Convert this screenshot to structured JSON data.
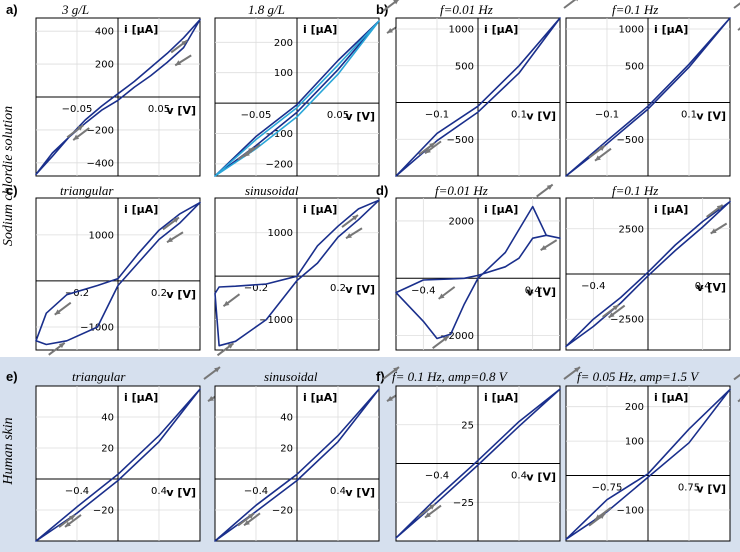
{
  "colors": {
    "curve": "#1a2f8c",
    "curve_alt": "#2aa6d8",
    "arrow": "#777777",
    "band": "#d6e0ee"
  },
  "row_labels": {
    "sodium": "Sodium chlordie solution",
    "skin": "Human skin"
  },
  "panel_labels": {
    "a": "a)",
    "b": "b)",
    "c": "c)",
    "d": "d)",
    "e": "e)",
    "f": "f)"
  },
  "titles": {
    "a1": "3 g/L",
    "a2": "1.8 g/L",
    "b1": "f=0.01 Hz",
    "b2": "f=0.1 Hz",
    "c1": "triangular",
    "c2": "sinusoidal",
    "d1": "f=0.01 Hz",
    "d2": "f=0.1 Hz",
    "e1": "triangular",
    "e2": "sinusoidal",
    "f1": "f= 0.1 Hz, amp=0.8 V",
    "f2": "f= 0.05 Hz, amp=1.5 V"
  },
  "chart_data": [
    {
      "id": "a1",
      "type": "line",
      "title": "3 g/L",
      "xlabel": "v [V]",
      "ylabel": "i [μA]",
      "xlim": [
        -0.1,
        0.1
      ],
      "ylim": [
        -480,
        480
      ],
      "xticks": [
        -0.05,
        0.05
      ],
      "yticks": [
        -400,
        -200,
        200,
        400
      ],
      "series": [
        {
          "x": [
            -0.1,
            -0.08,
            -0.06,
            -0.04,
            -0.02,
            0,
            0.02,
            0.04,
            0.06,
            0.08,
            0.1
          ],
          "forward": [
            -470,
            -360,
            -245,
            -160,
            -80,
            -20,
            60,
            130,
            210,
            300,
            470
          ],
          "backward": [
            -470,
            -340,
            -245,
            -140,
            -55,
            20,
            95,
            180,
            265,
            360,
            470
          ]
        }
      ]
    },
    {
      "id": "a2",
      "type": "line",
      "title": "1.8 g/L",
      "xlabel": "v [V]",
      "ylabel": "i [μA]",
      "xlim": [
        -0.1,
        0.1
      ],
      "ylim": [
        -240,
        280
      ],
      "xticks": [
        -0.05,
        0.05
      ],
      "yticks": [
        -200,
        -100,
        100,
        200
      ],
      "series": [
        {
          "color": "#1a2f8c",
          "x": [
            -0.1,
            -0.05,
            0,
            0.05,
            0.1
          ],
          "forward": [
            -240,
            -140,
            -30,
            110,
            270
          ],
          "backward": [
            -240,
            -110,
            -5,
            140,
            270
          ]
        },
        {
          "color": "#2aa6d8",
          "x": [
            -0.1,
            -0.05,
            0,
            0.05,
            0.1
          ],
          "forward": [
            -240,
            -150,
            -45,
            95,
            270
          ],
          "backward": [
            -240,
            -120,
            -15,
            125,
            270
          ]
        }
      ]
    },
    {
      "id": "b1",
      "type": "line",
      "title": "f=0.01 Hz",
      "xlabel": "v [V]",
      "ylabel": "i [μA]",
      "xlim": [
        -0.2,
        0.2
      ],
      "ylim": [
        -1000,
        1150
      ],
      "xticks": [
        -0.1,
        0.1
      ],
      "yticks": [
        -500,
        500,
        1000
      ],
      "series": [
        {
          "x": [
            -0.2,
            -0.1,
            0,
            0.1,
            0.2
          ],
          "forward": [
            -1000,
            -520,
            -130,
            400,
            1150
          ],
          "backward": [
            -1000,
            -420,
            -50,
            500,
            1150
          ]
        }
      ]
    },
    {
      "id": "b2",
      "type": "line",
      "title": "f=0.1 Hz",
      "xlabel": "v [V]",
      "ylabel": "i [μA]",
      "xlim": [
        -0.2,
        0.2
      ],
      "ylim": [
        -1000,
        1150
      ],
      "xticks": [
        -0.1,
        0.1
      ],
      "yticks": [
        -500,
        500,
        1000
      ],
      "series": [
        {
          "x": [
            -0.2,
            -0.1,
            0,
            0.1,
            0.2
          ],
          "forward": [
            -1000,
            -560,
            -90,
            480,
            1150
          ],
          "backward": [
            -1000,
            -520,
            -50,
            520,
            1150
          ]
        }
      ]
    },
    {
      "id": "c1",
      "type": "line",
      "title": "triangular",
      "xlabel": "v [V]",
      "ylabel": "i [μA]",
      "xlim": [
        -0.4,
        0.4
      ],
      "ylim": [
        -1500,
        1800
      ],
      "xticks": [
        -0.2,
        0.2
      ],
      "yticks": [
        -1000,
        1000
      ],
      "series": [
        {
          "x": [
            -0.4,
            -0.35,
            -0.25,
            -0.1,
            0,
            0.1,
            0.2,
            0.3,
            0.4
          ],
          "forward": [
            -1300,
            -1380,
            -1300,
            -1000,
            -100,
            400,
            900,
            1250,
            1700
          ],
          "backward": [
            -1300,
            -700,
            -300,
            -100,
            50,
            600,
            1100,
            1450,
            1700
          ]
        }
      ]
    },
    {
      "id": "c2",
      "type": "line",
      "title": "sinusoidal",
      "xlabel": "v [V]",
      "ylabel": "i [μA]",
      "xlim": [
        -0.4,
        0.4
      ],
      "ylim": [
        -1700,
        1800
      ],
      "xticks": [
        -0.2,
        0.2
      ],
      "yticks": [
        -1000,
        1000
      ],
      "series": [
        {
          "x": [
            -0.4,
            -0.38,
            -0.3,
            -0.15,
            0,
            0.1,
            0.2,
            0.3,
            0.4
          ],
          "forward": [
            -400,
            -1600,
            -1500,
            -1000,
            -100,
            300,
            900,
            1300,
            1750
          ],
          "backward": [
            -400,
            -250,
            -230,
            -180,
            0,
            700,
            1150,
            1550,
            1750
          ]
        }
      ]
    },
    {
      "id": "d1",
      "type": "line",
      "title": "f=0.01 Hz",
      "xlabel": "v [V]",
      "ylabel": "i [μA]",
      "xlim": [
        -0.6,
        0.6
      ],
      "ylim": [
        -2500,
        2800
      ],
      "xticks": [
        -0.4,
        0.4
      ],
      "yticks": [
        -2000,
        2000
      ],
      "series": [
        {
          "x": [
            -0.6,
            -0.4,
            -0.3,
            -0.2,
            -0.1,
            0,
            0.2,
            0.3,
            0.4,
            0.5,
            0.6
          ],
          "forward": [
            -500,
            -1500,
            -2100,
            -1950,
            -900,
            0,
            900,
            1700,
            2500,
            1500,
            1400
          ],
          "backward": [
            -500,
            -60,
            -40,
            -20,
            0,
            100,
            400,
            700,
            1400,
            1500,
            1400
          ]
        }
      ]
    },
    {
      "id": "d2",
      "type": "line",
      "title": "f=0.1 Hz",
      "xlabel": "v [V]",
      "ylabel": "i [μA]",
      "xlim": [
        -0.6,
        0.6
      ],
      "ylim": [
        -4200,
        4200
      ],
      "xticks": [
        -0.4,
        0.4
      ],
      "yticks": [
        -2500,
        2500
      ],
      "series": [
        {
          "x": [
            -0.6,
            -0.4,
            -0.2,
            0,
            0.2,
            0.4,
            0.6
          ],
          "forward": [
            -4000,
            -2900,
            -1600,
            -100,
            1300,
            2600,
            4000
          ],
          "backward": [
            -4000,
            -2500,
            -1300,
            100,
            1600,
            2900,
            4000
          ]
        }
      ]
    },
    {
      "id": "e1",
      "type": "line",
      "title": "triangular",
      "xlabel": "v [V]",
      "ylabel": "i [μA]",
      "xlim": [
        -0.8,
        0.8
      ],
      "ylim": [
        -40,
        60
      ],
      "xticks": [
        -0.4,
        0.4
      ],
      "yticks": [
        -20,
        20,
        40
      ],
      "series": [
        {
          "x": [
            -0.8,
            -0.4,
            0,
            0.4,
            0.8
          ],
          "forward": [
            -40,
            -22,
            -1,
            24,
            58
          ],
          "backward": [
            -40,
            -18,
            3,
            28,
            58
          ]
        }
      ]
    },
    {
      "id": "e2",
      "type": "line",
      "title": "sinusoidal",
      "xlabel": "v [V]",
      "ylabel": "i [μA]",
      "xlim": [
        -0.8,
        0.8
      ],
      "ylim": [
        -40,
        60
      ],
      "xticks": [
        -0.4,
        0.4
      ],
      "yticks": [
        -20,
        20,
        40
      ],
      "series": [
        {
          "x": [
            -0.8,
            -0.4,
            0,
            0.4,
            0.8
          ],
          "forward": [
            -40,
            -21,
            -1,
            24,
            58
          ],
          "backward": [
            -40,
            -17,
            3,
            28,
            58
          ]
        }
      ]
    },
    {
      "id": "f1",
      "type": "line",
      "title": "f= 0.1 Hz, amp=0.8 V",
      "xlabel": "v [V]",
      "ylabel": "i [μA]",
      "xlim": [
        -0.8,
        0.8
      ],
      "ylim": [
        -50,
        50
      ],
      "xticks": [
        -0.4,
        0.4
      ],
      "yticks": [
        -25,
        25
      ],
      "series": [
        {
          "x": [
            -0.8,
            -0.4,
            0,
            0.4,
            0.8
          ],
          "forward": [
            -48,
            -25,
            -1,
            24,
            48
          ],
          "backward": [
            -48,
            -22,
            2,
            27,
            48
          ]
        }
      ]
    },
    {
      "id": "f2",
      "type": "line",
      "title": "f= 0.05 Hz, amp=1.5 V",
      "xlabel": "v [V]",
      "ylabel": "i [μA]",
      "xlim": [
        -1.5,
        1.5
      ],
      "ylim": [
        -190,
        260
      ],
      "xticks": [
        -0.75,
        0.75
      ],
      "yticks": [
        -100,
        100,
        200
      ],
      "series": [
        {
          "x": [
            -1.5,
            -0.75,
            0,
            0.75,
            1.5
          ],
          "forward": [
            -185,
            -105,
            -5,
            95,
            250
          ],
          "backward": [
            -185,
            -70,
            5,
            135,
            250
          ]
        }
      ]
    }
  ]
}
